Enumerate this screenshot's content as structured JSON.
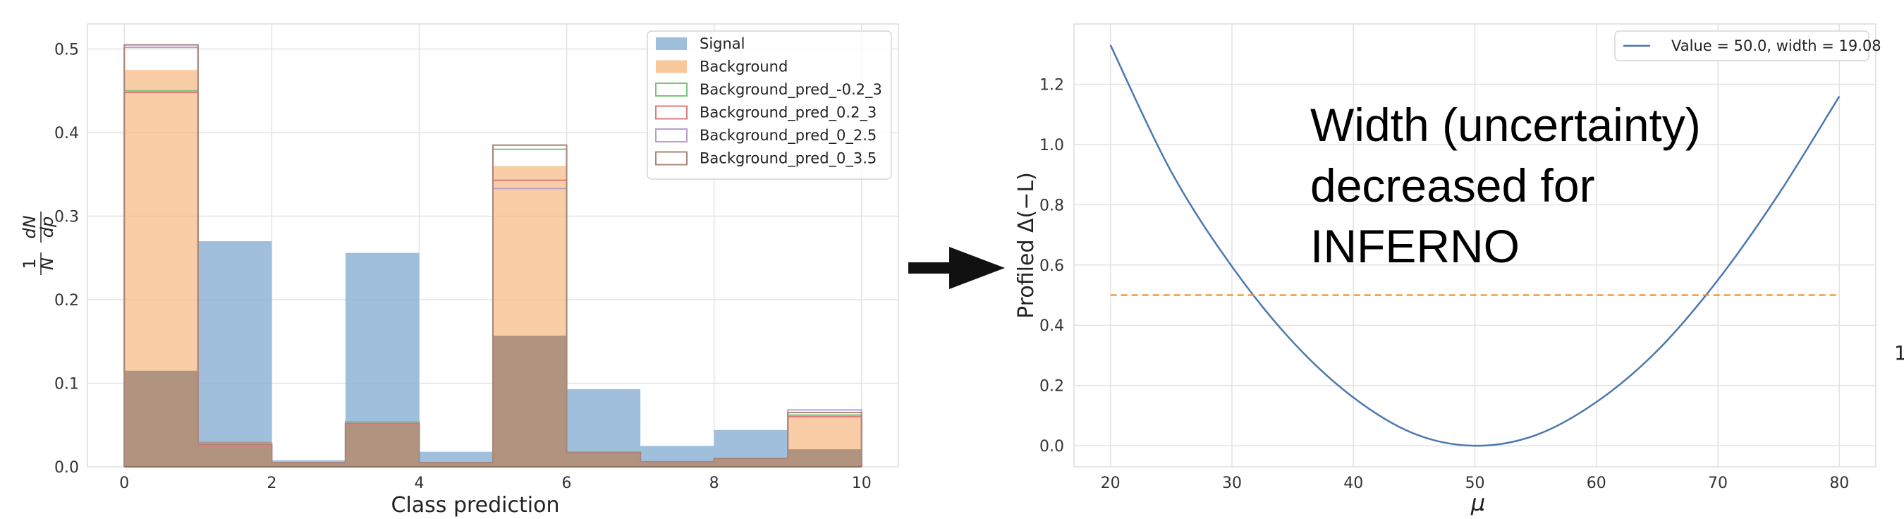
{
  "chart_data": [
    {
      "type": "bar",
      "histtype": "step-and-filled",
      "x_ticks": [
        "0",
        "2",
        "4",
        "6",
        "8",
        "10"
      ],
      "y_ticks": [
        "0.0",
        "0.1",
        "0.2",
        "0.3",
        "0.4",
        "0.5"
      ],
      "xlim": [
        -0.5,
        10.5
      ],
      "ylim": [
        0,
        0.53
      ],
      "xlabel": "Class prediction",
      "ylabel": "1/N dN/dp",
      "ylabel_parts": {
        "one": "1",
        "n": "N",
        "dn": "dN",
        "dp": "dp"
      },
      "grid": true,
      "legend_position": "top-right",
      "bin_edges": [
        0,
        1,
        2,
        3,
        4,
        5,
        6,
        7,
        8,
        9,
        10
      ],
      "series": [
        {
          "name": "Signal",
          "style": "filled",
          "color": "#8fb4d6",
          "values": [
            0.115,
            0.27,
            0.008,
            0.256,
            0.018,
            0.157,
            0.093,
            0.025,
            0.044,
            0.021
          ]
        },
        {
          "name": "Background",
          "style": "filled",
          "color": "#f7bd89",
          "values": [
            0.475,
            0.03,
            0.005,
            0.052,
            0.005,
            0.36,
            0.018,
            0.006,
            0.01,
            0.062
          ]
        },
        {
          "name": "Background_pred_-0.2_3",
          "style": "step",
          "color": "#79c679",
          "values": [
            0.45,
            0.027,
            0.005,
            0.054,
            0.005,
            0.38,
            0.018,
            0.006,
            0.01,
            0.062
          ]
        },
        {
          "name": "Background_pred_0.2_3",
          "style": "step",
          "color": "#e07b7b",
          "values": [
            0.448,
            0.025,
            0.005,
            0.05,
            0.005,
            0.343,
            0.016,
            0.006,
            0.009,
            0.06
          ]
        },
        {
          "name": "Background_pred_0_2.5",
          "style": "step",
          "color": "#b59fd0",
          "values": [
            0.502,
            0.028,
            0.005,
            0.052,
            0.005,
            0.333,
            0.017,
            0.006,
            0.01,
            0.068
          ]
        },
        {
          "name": "Background_pred_0_3.5",
          "style": "step",
          "color": "#a9867a",
          "values": [
            0.505,
            0.027,
            0.005,
            0.052,
            0.005,
            0.385,
            0.017,
            0.006,
            0.01,
            0.065
          ]
        }
      ]
    },
    {
      "type": "line",
      "x_ticks": [
        "20",
        "30",
        "40",
        "50",
        "60",
        "70",
        "80"
      ],
      "y_ticks": [
        "0.0",
        "0.2",
        "0.4",
        "0.6",
        "0.8",
        "1.0",
        "1.2"
      ],
      "xlim": [
        17,
        83
      ],
      "ylim": [
        -0.07,
        1.4
      ],
      "xlabel": "μ",
      "ylabel": "Profiled Δ(−L)",
      "grid": true,
      "legend_position": "top-right",
      "series": [
        {
          "name": "Value = 50.0, width = 19.08",
          "color": "#4c78b0",
          "x": [
            20,
            25,
            30,
            35,
            40,
            45,
            50,
            55,
            60,
            65,
            70,
            75,
            80
          ],
          "y": [
            1.33,
            0.91,
            0.595,
            0.345,
            0.16,
            0.04,
            0.0,
            0.035,
            0.145,
            0.315,
            0.55,
            0.835,
            1.16
          ]
        },
        {
          "name": "",
          "style": "dashed",
          "color": "#f28e2b",
          "x": [
            20,
            80
          ],
          "y": [
            0.5,
            0.5
          ]
        }
      ],
      "annotation": [
        "Width (uncertainty)",
        "decreased for",
        "INFERNO"
      ]
    }
  ]
}
